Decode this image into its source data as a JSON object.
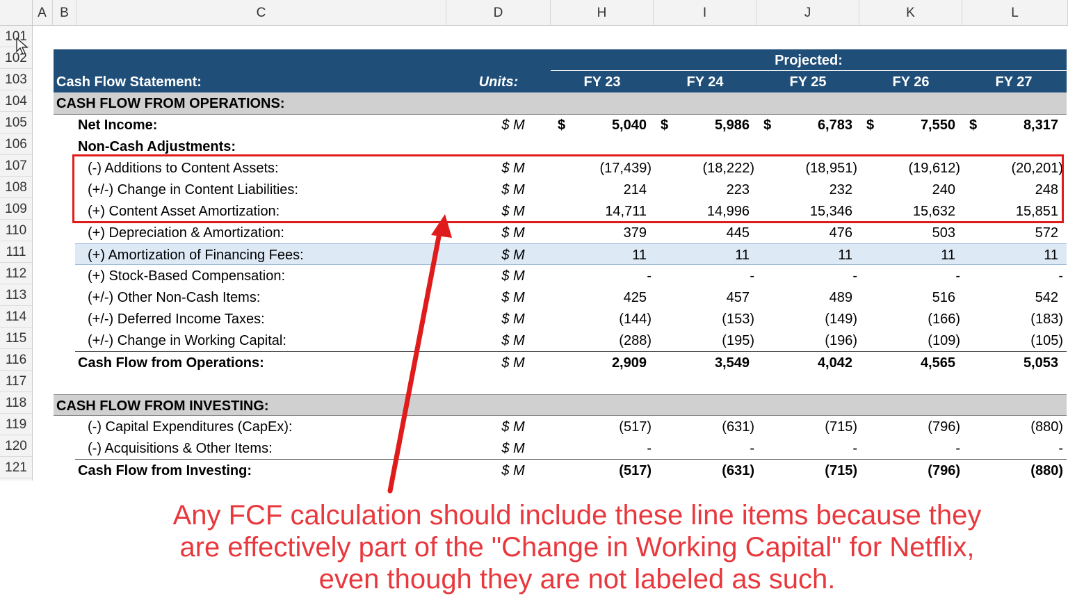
{
  "columns": [
    "A",
    "B",
    "C",
    "D",
    "H",
    "I",
    "J",
    "K",
    "L"
  ],
  "row_numbers": [
    "101",
    "102",
    "103",
    "104",
    "105",
    "106",
    "107",
    "108",
    "109",
    "110",
    "111",
    "112",
    "113",
    "114",
    "115",
    "116",
    "117",
    "118",
    "119",
    "120",
    "121"
  ],
  "header": {
    "projected_label": "Projected:",
    "title": "Cash Flow Statement:",
    "units_label": "Units:",
    "years": [
      "FY 23",
      "FY 24",
      "FY 25",
      "FY 26",
      "FY 27"
    ]
  },
  "sections": {
    "operations_title": "CASH FLOW FROM OPERATIONS:",
    "investing_title": "CASH FLOW FROM INVESTING:"
  },
  "rows": {
    "net_income": {
      "label": "Net Income:",
      "units": "$ M",
      "currency": "$",
      "values": [
        "5,040",
        "5,986",
        "6,783",
        "7,550",
        "8,317"
      ]
    },
    "noncash_header": {
      "label": "Non-Cash Adjustments:"
    },
    "content_additions": {
      "label": "(-) Additions to Content Assets:",
      "units": "$ M",
      "values": [
        "(17,439)",
        "(18,222)",
        "(18,951)",
        "(19,612)",
        "(20,201)"
      ]
    },
    "content_liabilities": {
      "label": "(+/-) Change in Content Liabilities:",
      "units": "$ M",
      "values": [
        "214",
        "223",
        "232",
        "240",
        "248"
      ]
    },
    "content_amortization": {
      "label": "(+) Content Asset Amortization:",
      "units": "$ M",
      "values": [
        "14,711",
        "14,996",
        "15,346",
        "15,632",
        "15,851"
      ]
    },
    "dep_amort": {
      "label": "(+) Depreciation & Amortization:",
      "units": "$ M",
      "values": [
        "379",
        "445",
        "476",
        "503",
        "572"
      ]
    },
    "fin_fees": {
      "label": "(+) Amortization of Financing Fees:",
      "units": "$ M",
      "values": [
        "11",
        "11",
        "11",
        "11",
        "11"
      ]
    },
    "sbc": {
      "label": "(+) Stock-Based Compensation:",
      "units": "$ M",
      "values": [
        "-",
        "-",
        "-",
        "-",
        "-"
      ]
    },
    "other_noncash": {
      "label": "(+/-) Other Non-Cash Items:",
      "units": "$ M",
      "values": [
        "425",
        "457",
        "489",
        "516",
        "542"
      ]
    },
    "deferred_tax": {
      "label": "(+/-) Deferred Income Taxes:",
      "units": "$ M",
      "values": [
        "(144)",
        "(153)",
        "(149)",
        "(166)",
        "(183)"
      ]
    },
    "working_capital": {
      "label": "(+/-) Change in Working Capital:",
      "units": "$ M",
      "values": [
        "(288)",
        "(195)",
        "(196)",
        "(109)",
        "(105)"
      ]
    },
    "cfo": {
      "label": "Cash Flow from Operations:",
      "units": "$ M",
      "values": [
        "2,909",
        "3,549",
        "4,042",
        "4,565",
        "5,053"
      ]
    },
    "capex": {
      "label": "(-) Capital Expenditures (CapEx):",
      "units": "$ M",
      "values": [
        "(517)",
        "(631)",
        "(715)",
        "(796)",
        "(880)"
      ]
    },
    "acquisitions": {
      "label": "(-) Acquisitions & Other Items:",
      "units": "$ M",
      "values": [
        "-",
        "-",
        "-",
        "-",
        "-"
      ]
    },
    "cfi": {
      "label": "Cash Flow from Investing:",
      "units": "$ M",
      "values": [
        "(517)",
        "(631)",
        "(715)",
        "(796)",
        "(880)"
      ]
    }
  },
  "annotation": {
    "line1": "Any FCF calculation should include these line items because they",
    "line2": "are effectively part of the \"Change in Working Capital\" for Netflix,",
    "line3": "even though they are not labeled as such."
  },
  "colors": {
    "header_band": "#1f4e79",
    "section_band": "#d0d0d0",
    "selected_row": "#dde9f5",
    "annotation_red": "#e01b1b"
  },
  "icons": {
    "cursor": "mouse-pointer-icon"
  }
}
